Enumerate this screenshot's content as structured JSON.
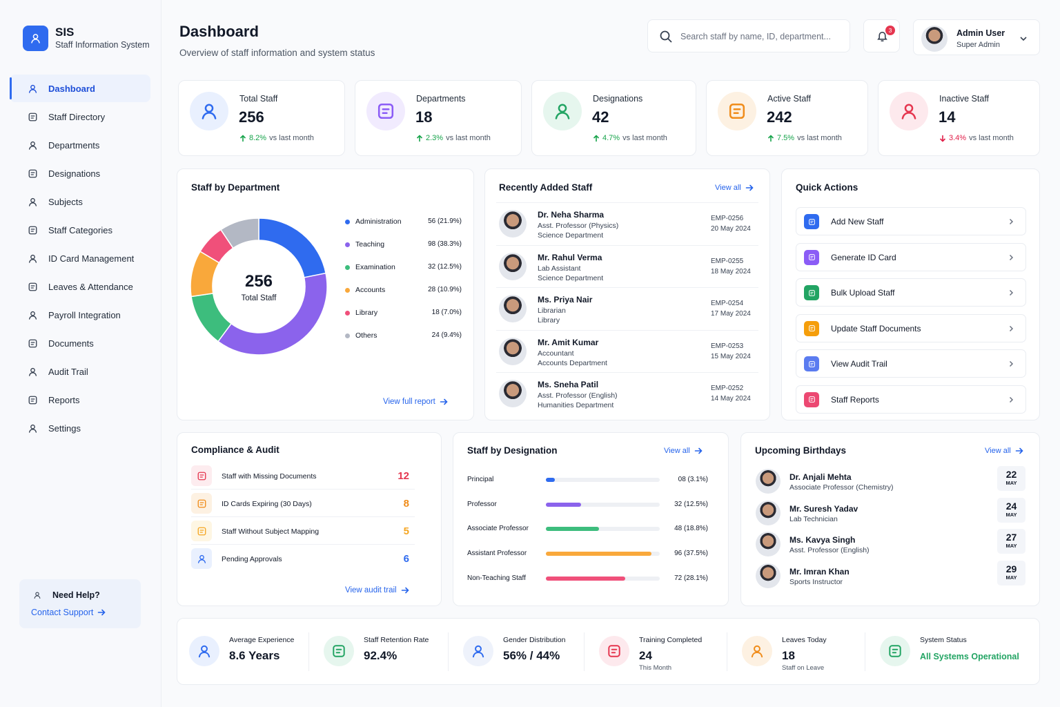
{
  "sidebar": {
    "brand": "SIS",
    "subtitle": "Staff Information System",
    "nav": [
      "Dashboard",
      "Staff Directory",
      "Departments",
      "Designations",
      "Subjects",
      "Staff Categories",
      "ID Card Management",
      "Leaves & Attendance",
      "Payroll Integration",
      "Documents",
      "Audit Trail",
      "Reports",
      "Settings"
    ],
    "active": 0,
    "help": {
      "title": "Need Help?",
      "link": "Contact Support"
    }
  },
  "header": {
    "title": "Dashboard",
    "subtitle": "Overview of staff information and system status",
    "search": "Search staff by name, ID, department...",
    "notifications": 3,
    "user": {
      "name": "Admin User",
      "role": "Super Admin"
    }
  },
  "stats": [
    {
      "label": "Total Staff",
      "value": 256,
      "change": "8.2%",
      "note": "vs last month",
      "trend": "up",
      "color": "#2f6bef",
      "bg": "#e9f0fe"
    },
    {
      "label": "Departments",
      "value": 18,
      "change": "2.3%",
      "note": "vs last month",
      "trend": "up",
      "color": "#8b5cf6",
      "bg": "#f1ebfe"
    },
    {
      "label": "Designations",
      "value": 42,
      "change": "4.7%",
      "note": "vs last month",
      "trend": "up",
      "color": "#22a463",
      "bg": "#e6f6ee"
    },
    {
      "label": "Active Staff",
      "value": 242,
      "change": "7.5%",
      "note": "vs last month",
      "trend": "up",
      "color": "#f08c1a",
      "bg": "#fdf1e2"
    },
    {
      "label": "Inactive Staff",
      "value": 14,
      "change": "3.4%",
      "note": "vs last month",
      "trend": "down",
      "color": "#e5364f",
      "bg": "#fde9ed"
    }
  ],
  "staff_by_department": {
    "type": "pie",
    "title": "Staff by Department",
    "center_value": 256,
    "center_label": "Total Staff",
    "categories": [
      "Administration",
      "Teaching",
      "Examination",
      "Accounts",
      "Library",
      "Others"
    ],
    "values": [
      56,
      98,
      32,
      28,
      18,
      24
    ],
    "value_labels": [
      "56 (21.9%)",
      "98 (38.3%)",
      "32 (12.5%)",
      "28 (10.9%)",
      "18 (7.0%)",
      "24 (9.4%)"
    ],
    "colors": [
      "#2f6bef",
      "#8b63ec",
      "#3dbd7d",
      "#f9a83b",
      "#f0507a",
      "#b3b8c4"
    ],
    "link": "View full report"
  },
  "recent_staff": {
    "title": "Recently Added Staff",
    "link": "View all",
    "items": [
      {
        "name": "Dr. Neha Sharma",
        "role": "Asst. Professor (Physics)",
        "department": "Science Department",
        "id": "EMP-0256",
        "date": "20 May 2024"
      },
      {
        "name": "Mr. Rahul Verma",
        "role": "Lab Assistant",
        "department": "Science Department",
        "id": "EMP-0255",
        "date": "18 May 2024"
      },
      {
        "name": "Ms. Priya Nair",
        "role": "Librarian",
        "department": "Library",
        "id": "EMP-0254",
        "date": "17 May 2024"
      },
      {
        "name": "Mr. Amit Kumar",
        "role": "Accountant",
        "department": "Accounts Department",
        "id": "EMP-0253",
        "date": "15 May 2024"
      },
      {
        "name": "Ms. Sneha Patil",
        "role": "Asst. Professor (English)",
        "department": "Humanities Department",
        "id": "EMP-0252",
        "date": "14 May 2024"
      }
    ]
  },
  "quick_actions": {
    "title": "Quick Actions",
    "items": [
      {
        "label": "Add New Staff",
        "color": "#2f6bef"
      },
      {
        "label": "Generate ID Card",
        "color": "#8b5cf6"
      },
      {
        "label": "Bulk Upload Staff",
        "color": "#22a463"
      },
      {
        "label": "Update Staff Documents",
        "color": "#f59e0b"
      },
      {
        "label": "View Audit Trail",
        "color": "#5b7cf0"
      },
      {
        "label": "Staff Reports",
        "color": "#ec4872"
      }
    ]
  },
  "compliance": {
    "title": "Compliance & Audit",
    "link": "View audit trail",
    "items": [
      {
        "label": "Staff with Missing Documents",
        "count": 12,
        "color": "#e5364f",
        "bg": "#fdecef"
      },
      {
        "label": "ID Cards Expiring (30 Days)",
        "count": 8,
        "color": "#f08c1a",
        "bg": "#fdf1e2"
      },
      {
        "label": "Staff Without Subject Mapping",
        "count": 5,
        "color": "#f5a623",
        "bg": "#fef6e3"
      },
      {
        "label": "Pending Approvals",
        "count": 6,
        "color": "#2f6bef",
        "bg": "#e9f0fe"
      }
    ]
  },
  "staff_by_designation": {
    "type": "bar",
    "title": "Staff by Designation",
    "link": "View all",
    "categories": [
      "Principal",
      "Professor",
      "Associate Professor",
      "Assistant Professor",
      "Non-Teaching Staff"
    ],
    "values": [
      8,
      32,
      48,
      96,
      72
    ],
    "value_labels": [
      "08 (3.1%)",
      "32 (12.5%)",
      "48 (18.8%)",
      "96 (37.5%)",
      "72 (28.1%)"
    ],
    "colors": [
      "#2f6bef",
      "#8b63ec",
      "#3dbd7d",
      "#f9a83b",
      "#f0507a"
    ]
  },
  "birthdays": {
    "title": "Upcoming Birthdays",
    "link": "View all",
    "items": [
      {
        "name": "Dr. Anjali Mehta",
        "role": "Associate Professor (Chemistry)",
        "day": 22,
        "month": "MAY"
      },
      {
        "name": "Mr. Suresh Yadav",
        "role": "Lab Technician",
        "day": 24,
        "month": "MAY"
      },
      {
        "name": "Ms. Kavya Singh",
        "role": "Asst. Professor (English)",
        "day": 27,
        "month": "MAY"
      },
      {
        "name": "Mr. Imran Khan",
        "role": "Sports Instructor",
        "day": 29,
        "month": "MAY"
      }
    ]
  },
  "summary": [
    {
      "label": "Average Experience",
      "value": "8.6 Years",
      "color": "#2f6bef",
      "bg": "#e9f0fe"
    },
    {
      "label": "Staff Retention Rate",
      "value": "92.4%",
      "color": "#22a463",
      "bg": "#e6f6ee"
    },
    {
      "label": "Gender Distribution",
      "value": "56% / 44%",
      "color": "#2f6bef",
      "bg": "#eef2fb"
    },
    {
      "label": "Training Completed",
      "value": 24,
      "note": "This Month",
      "color": "#e5364f",
      "bg": "#fde9ed"
    },
    {
      "label": "Leaves Today",
      "value": 18,
      "note": "Staff on Leave",
      "color": "#f08c1a",
      "bg": "#fdf1e2"
    },
    {
      "label": "System Status",
      "value": "All Systems Operational",
      "color": "#22a463",
      "bg": "#e6f6ee",
      "status": true
    }
  ]
}
